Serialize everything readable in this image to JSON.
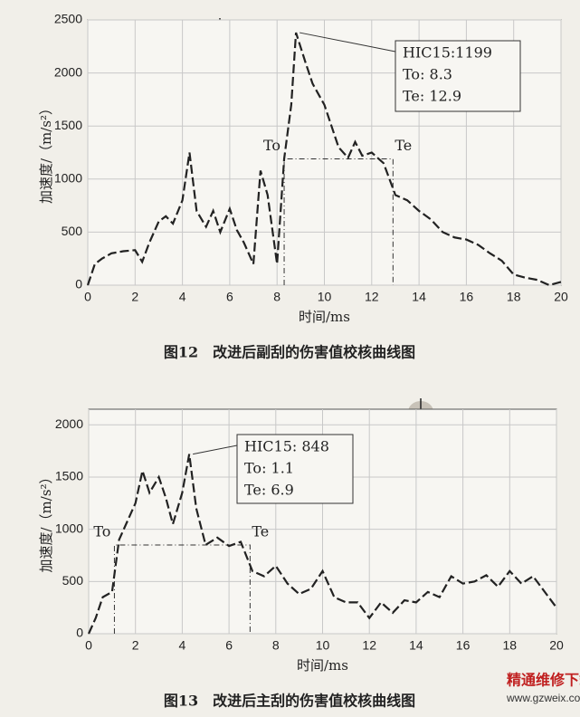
{
  "chart_data": [
    {
      "type": "line",
      "caption": "图12　改进后副刮的伤害值校核曲线图",
      "x_label": "时间/ms",
      "y_label": "加速度/（m/s²）",
      "x": [
        0,
        0.3,
        0.6,
        1,
        1.5,
        2,
        2.3,
        2.6,
        3,
        3.3,
        3.6,
        4,
        4.3,
        4.6,
        5,
        5.3,
        5.6,
        6,
        6.3,
        6.6,
        7,
        7.3,
        7.6,
        8,
        8.3,
        8.6,
        8.8,
        9.2,
        9.5,
        10,
        10.3,
        10.6,
        11,
        11.3,
        11.6,
        12,
        12.5,
        13,
        13.5,
        14,
        14.5,
        15,
        15.5,
        16,
        16.5,
        17,
        17.5,
        18,
        18.5,
        19,
        19.5,
        20
      ],
      "series": [
        {
          "name": "加速度",
          "color": "#222",
          "values": [
            0,
            200,
            250,
            300,
            320,
            330,
            220,
            400,
            600,
            650,
            580,
            800,
            1250,
            700,
            550,
            700,
            500,
            720,
            520,
            400,
            200,
            1080,
            850,
            200,
            1190,
            1700,
            2380,
            2100,
            1900,
            1700,
            1500,
            1300,
            1200,
            1350,
            1220,
            1250,
            1150,
            850,
            800,
            700,
            620,
            500,
            450,
            430,
            380,
            300,
            230,
            100,
            70,
            50,
            0,
            30
          ]
        }
      ],
      "xlim": [
        0,
        20
      ],
      "xticks": [
        0,
        2,
        4,
        6,
        8,
        10,
        12,
        14,
        16,
        18,
        20
      ],
      "ylim": [
        0,
        2500
      ],
      "yticks": [
        0,
        500,
        1000,
        1500,
        2000,
        2500
      ],
      "grid": true,
      "annotation": [
        "HIC15:1199",
        "To: 8.3",
        "Te: 12.9"
      ],
      "window": {
        "start": 8.3,
        "end": 12.9,
        "level": 1190,
        "labels": [
          "To",
          "Te"
        ]
      }
    },
    {
      "type": "line",
      "caption": "图13　改进后主刮的伤害值校核曲线图",
      "x_label": "时间/ms",
      "y_label": "加速度/（m/s²）",
      "x": [
        0,
        0.3,
        0.6,
        1,
        1.3,
        1.6,
        2,
        2.3,
        2.6,
        3,
        3.3,
        3.6,
        4,
        4.3,
        4.6,
        5,
        5.5,
        6,
        6.5,
        7,
        7.5,
        8,
        8.5,
        9,
        9.5,
        10,
        10.5,
        11,
        11.5,
        12,
        12.5,
        13,
        13.5,
        14,
        14.5,
        15,
        15.5,
        16,
        16.5,
        17,
        17.5,
        18,
        18.5,
        19,
        19.5,
        20
      ],
      "series": [
        {
          "name": "加速度",
          "color": "#222",
          "values": [
            0,
            150,
            350,
            400,
            900,
            1050,
            1250,
            1560,
            1350,
            1500,
            1300,
            1050,
            1350,
            1720,
            1200,
            850,
            920,
            840,
            880,
            600,
            550,
            650,
            480,
            380,
            430,
            600,
            350,
            300,
            300,
            150,
            300,
            200,
            320,
            300,
            400,
            350,
            550,
            480,
            500,
            560,
            450,
            600,
            480,
            550,
            400,
            250
          ]
        }
      ],
      "xlim": [
        0,
        20
      ],
      "xticks": [
        0,
        2,
        4,
        6,
        8,
        10,
        12,
        14,
        16,
        18,
        20
      ],
      "ylim": [
        0,
        2150
      ],
      "yticks": [
        0,
        500,
        1000,
        1500,
        2000
      ],
      "grid": true,
      "annotation": [
        "HIC15: 848",
        "To: 1.1",
        "Te: 6.9"
      ],
      "window": {
        "start": 1.1,
        "end": 6.9,
        "level": 850,
        "labels": [
          "To",
          "Te"
        ]
      }
    }
  ],
  "watermark": {
    "title": "精通维修下载",
    "url": "www.gzweix.com"
  }
}
